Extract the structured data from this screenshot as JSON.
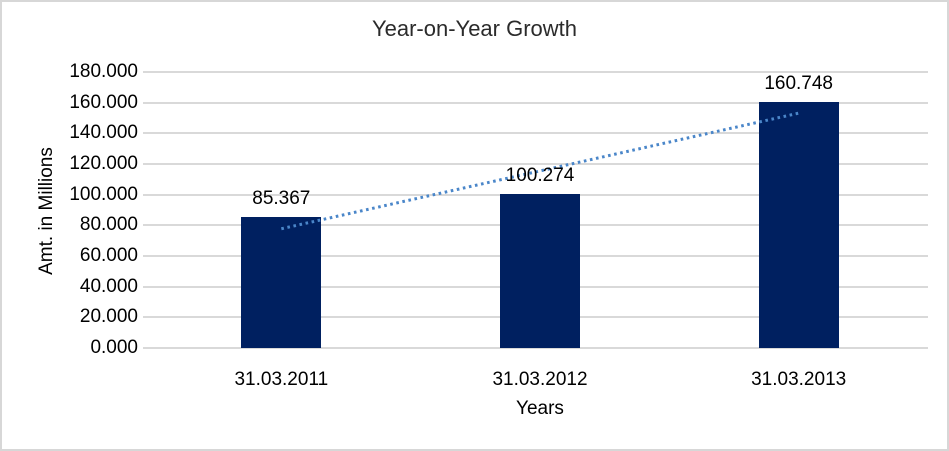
{
  "window": {
    "background": "#ffffff",
    "border_color": "#d7d7d7"
  },
  "chart_data": {
    "type": "bar",
    "title": "Year-on-Year Growth",
    "xlabel": "Years",
    "ylabel": "Amt. in Millions",
    "categories": [
      "31.03.2011",
      "31.03.2012",
      "31.03.2013"
    ],
    "values": [
      85.367,
      100.274,
      160.748
    ],
    "data_labels": [
      "85.367",
      "100.274",
      "160.748"
    ],
    "ylim": [
      0,
      180
    ],
    "ytick_step": 20,
    "ytick_labels": [
      "0.000",
      "20.000",
      "40.000",
      "60.000",
      "80.000",
      "100.000",
      "120.000",
      "140.000",
      "160.000",
      "180.000"
    ],
    "grid": true,
    "legend": "none",
    "bar_color": "#002060",
    "gridline_color": "#d9d9d9",
    "text_color": "#000000",
    "trendline": {
      "type": "linear",
      "style": "dotted",
      "color": "#4a86c9"
    }
  }
}
